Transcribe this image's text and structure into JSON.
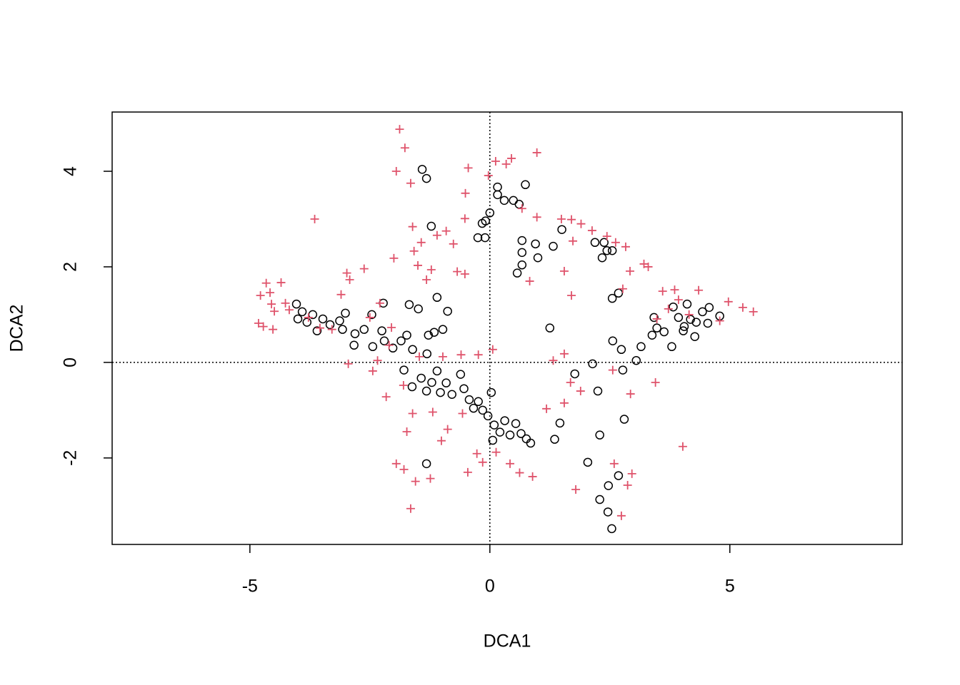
{
  "chart_data": {
    "type": "scatter",
    "x_label": "DCA1",
    "y_label": "DCA2",
    "xlim": [
      -7.87,
      8.59
    ],
    "ylim": [
      -3.81,
      5.24
    ],
    "xticks": [
      -5,
      0,
      5
    ],
    "yticks": [
      -2,
      0,
      2,
      4
    ],
    "reference_lines": {
      "x": 0,
      "y": 0
    },
    "series": [
      {
        "color": "#000000",
        "marker": "circle",
        "x": [
          -4.03,
          -3.91,
          -4.0,
          -3.81,
          -3.69,
          -3.6,
          -3.48,
          -3.33,
          -3.13,
          -3.01,
          -3.07,
          -2.81,
          -2.62,
          -2.46,
          -2.22,
          -2.83,
          -2.44,
          -2.25,
          -2.2,
          -2.02,
          -1.85,
          -1.73,
          -1.61,
          -1.68,
          -1.49,
          -1.41,
          -1.32,
          -1.22,
          -1.1,
          -0.88,
          -0.98,
          -1.16,
          -1.28,
          -1.31,
          -1.79,
          -1.62,
          -1.43,
          -1.32,
          -1.21,
          -1.1,
          -1.03,
          -0.91,
          -0.79,
          -0.61,
          -0.54,
          -0.43,
          -0.34,
          -0.24,
          -0.15,
          -0.04,
          0.03,
          0.09,
          0.21,
          0.31,
          0.42,
          0.54,
          0.65,
          0.76,
          0.85,
          0.06,
          -1.32,
          0,
          -0.09,
          -0.16,
          -0.25,
          -0.1,
          0.16,
          0.16,
          0.3,
          0.49,
          0.61,
          0.74,
          0.67,
          0.67,
          0.57,
          0.67,
          0.95,
          1.0,
          1.32,
          1.5,
          2.19,
          2.34,
          2.38,
          2.44,
          2.55,
          2.68,
          2.55,
          2.56,
          2.74,
          2.77,
          3.05,
          3.15,
          2.14,
          2.25,
          1.77,
          1.25,
          1.46,
          1.35,
          2.29,
          2.04,
          2.8,
          2.68,
          2.47,
          2.29,
          2.46,
          2.54,
          3.38,
          3.42,
          3.48,
          3.63,
          3.82,
          3.93,
          4.05,
          4.11,
          4.18,
          4.3,
          4.27,
          4.43,
          4.57,
          4.79,
          3.79,
          4.03,
          4.54
        ],
        "values": [
          1.22,
          1.06,
          0.91,
          0.84,
          1.0,
          0.66,
          0.91,
          0.79,
          0.87,
          1.03,
          0.69,
          0.6,
          0.69,
          1.0,
          1.24,
          0.36,
          0.33,
          0.66,
          0.45,
          0.3,
          0.45,
          0.57,
          0.27,
          1.21,
          1.12,
          4.04,
          3.85,
          2.85,
          1.36,
          1.07,
          0.69,
          0.63,
          0.57,
          0.18,
          -0.16,
          -0.51,
          -0.33,
          -0.6,
          -0.42,
          -0.18,
          -0.63,
          -0.43,
          -0.67,
          -0.25,
          -0.55,
          -0.78,
          -0.96,
          -0.82,
          -1.0,
          -1.12,
          -0.63,
          -1.31,
          -1.46,
          -1.22,
          -1.52,
          -1.28,
          -1.49,
          -1.6,
          -1.69,
          -1.63,
          -2.12,
          3.13,
          2.96,
          2.91,
          2.61,
          2.61,
          3.67,
          3.51,
          3.39,
          3.39,
          3.31,
          3.72,
          2.55,
          2.3,
          1.87,
          2.04,
          2.48,
          2.19,
          2.43,
          2.78,
          2.51,
          2.19,
          2.51,
          2.34,
          2.34,
          1.45,
          1.34,
          0.45,
          0.27,
          -0.16,
          0.04,
          0.33,
          -0.03,
          -0.6,
          -0.24,
          0.72,
          -1.27,
          -1.61,
          -1.52,
          -2.09,
          -1.19,
          -2.37,
          -2.58,
          -2.87,
          -3.13,
          -3.48,
          0.57,
          0.94,
          0.72,
          0.64,
          1.16,
          0.94,
          0.75,
          1.22,
          0.9,
          0.84,
          0.54,
          1.06,
          1.15,
          0.97,
          0.33,
          0.66,
          0.82
        ]
      },
      {
        "color": "#df536b",
        "marker": "plus",
        "x": [
          -4.82,
          -4.72,
          -4.78,
          -4.66,
          -4.58,
          -4.55,
          -4.49,
          -4.52,
          -4.35,
          -4.26,
          -4.18,
          -3.65,
          -3.78,
          -3.54,
          -3.29,
          -3.1,
          -2.98,
          -2.92,
          -2.95,
          -2.62,
          -2.5,
          -2.44,
          -2.29,
          -2.05,
          -2.0,
          -1.95,
          -1.88,
          -1.77,
          -1.65,
          -1.61,
          -1.58,
          -1.5,
          -1.43,
          -1.32,
          -1.22,
          -1.1,
          -0.91,
          -0.76,
          -0.68,
          -0.52,
          -0.45,
          -0.51,
          -0.52,
          -0.03,
          0.12,
          0.34,
          0.45,
          0.98,
          0.67,
          0.98,
          1.49,
          1.7,
          1.9,
          2.13,
          1.73,
          1.55,
          2.44,
          2.62,
          2.83,
          2.77,
          2.92,
          3.21,
          3.3,
          3.6,
          3.72,
          3.85,
          3.93,
          4.35,
          4.97,
          5.27,
          5.49,
          4.79,
          4.15,
          3.48,
          0.83,
          1.7,
          1.55,
          1.32,
          1.68,
          1.89,
          2.56,
          2.93,
          3.45,
          4.02,
          1.55,
          1.18,
          1.79,
          2.59,
          2.96,
          2.87,
          2.74,
          0.89,
          0.62,
          0.42,
          -0.15,
          -0.46,
          -1.24,
          -1.65,
          -1.55,
          -1.79,
          -1.95,
          -1.73,
          -1.61,
          -2.16,
          -1.8,
          -1.19,
          -0.88,
          -1.01,
          -0.57,
          -0.27,
          0.13,
          0.06,
          -0.24,
          -0.6,
          -0.98,
          -2.34,
          -2.1,
          -1.47
        ],
        "values": [
          0.82,
          0.75,
          1.4,
          1.66,
          1.46,
          1.22,
          1.07,
          0.69,
          1.67,
          1.24,
          1.1,
          3.0,
          0.94,
          0.72,
          0.69,
          1.42,
          1.87,
          1.73,
          -0.03,
          1.96,
          0.94,
          -0.18,
          1.24,
          0.73,
          2.18,
          4.0,
          4.88,
          4.49,
          3.75,
          2.84,
          2.33,
          2.03,
          2.51,
          1.73,
          1.94,
          2.66,
          2.75,
          2.48,
          1.9,
          1.85,
          4.07,
          3.54,
          3.01,
          3.91,
          4.21,
          4.15,
          4.27,
          4.39,
          3.22,
          3.04,
          3.0,
          2.99,
          2.9,
          2.76,
          2.54,
          1.91,
          2.64,
          2.51,
          2.42,
          1.54,
          1.91,
          2.06,
          2.0,
          1.49,
          1.12,
          1.52,
          1.31,
          1.51,
          1.27,
          1.15,
          1.06,
          0.87,
          1.0,
          0.91,
          1.7,
          1.4,
          0.18,
          0.04,
          -0.42,
          -0.6,
          -0.16,
          -0.66,
          -0.42,
          -1.76,
          -0.85,
          -0.97,
          -2.66,
          -2.12,
          -2.33,
          -2.57,
          -3.21,
          -2.39,
          -2.31,
          -2.12,
          -2.09,
          -2.3,
          -2.43,
          -3.06,
          -2.49,
          -2.24,
          -2.12,
          -1.45,
          -1.07,
          -0.72,
          -0.48,
          -1.04,
          -1.4,
          -1.64,
          -1.07,
          -1.91,
          -1.88,
          0.27,
          0.16,
          0.16,
          0.12,
          0.04,
          0.36,
          0.12
        ]
      }
    ]
  }
}
